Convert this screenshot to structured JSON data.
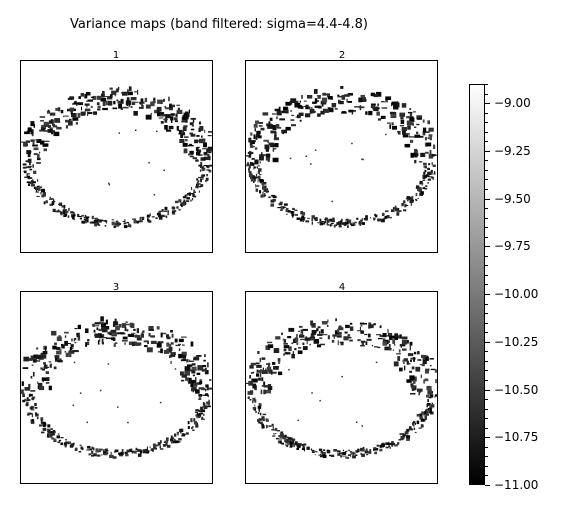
{
  "title": "Variance maps (band filtered: sigma=4.4-4.8)",
  "panels": [
    {
      "label": "1"
    },
    {
      "label": "2"
    },
    {
      "label": "3"
    },
    {
      "label": "4"
    }
  ],
  "chart_data": {
    "type": "heatmap",
    "title": "Variance maps (band filtered: sigma=4.4-4.8)",
    "subplots": [
      "1",
      "2",
      "3",
      "4"
    ],
    "colormap": "gray",
    "colorbar": {
      "range": [
        -11.0,
        -8.9
      ],
      "ticks": [
        -9.0,
        -9.25,
        -9.5,
        -9.75,
        -10.0,
        -10.25,
        -10.5,
        -10.75,
        -11.0
      ],
      "tick_labels": [
        "−9.00",
        "−9.25",
        "−9.50",
        "−9.75",
        "−10.00",
        "−10.25",
        "−10.50",
        "−10.75",
        "−11.00"
      ]
    },
    "axes_ticks_visible": false
  }
}
